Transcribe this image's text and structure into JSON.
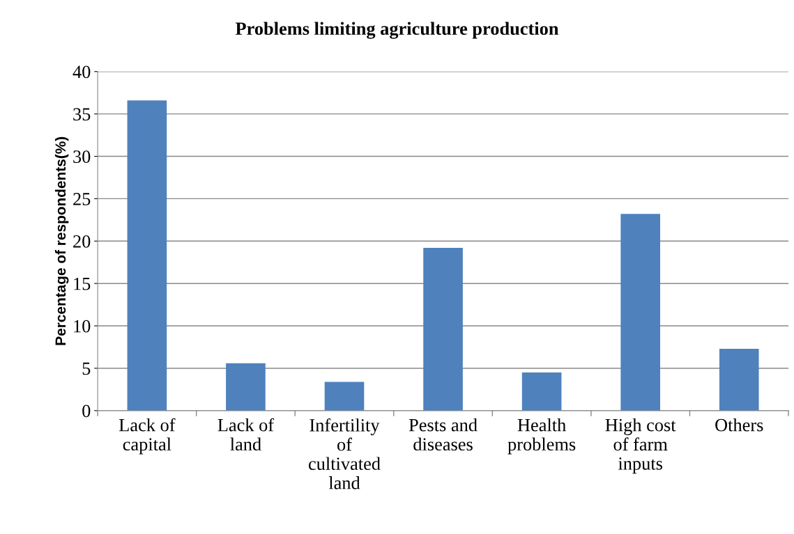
{
  "chart_data": {
    "type": "bar",
    "title": "Problems limiting agriculture production",
    "ylabel": "Percentage of respondents(%)",
    "categories": [
      "Lack of\ncapital",
      "Lack of\nland",
      "Infertility\nof\ncultivated\nland",
      "Pests and\ndiseases",
      "Health\nproblems",
      "High cost\nof farm\ninputs",
      "Others"
    ],
    "values": [
      36.6,
      5.6,
      3.4,
      19.2,
      4.5,
      23.2,
      7.3
    ],
    "color": "#4f81bd",
    "ylim": [
      0,
      40
    ],
    "yticks": [
      0,
      5,
      10,
      15,
      20,
      25,
      30,
      35,
      40
    ],
    "grid": "y",
    "legend": false
  }
}
